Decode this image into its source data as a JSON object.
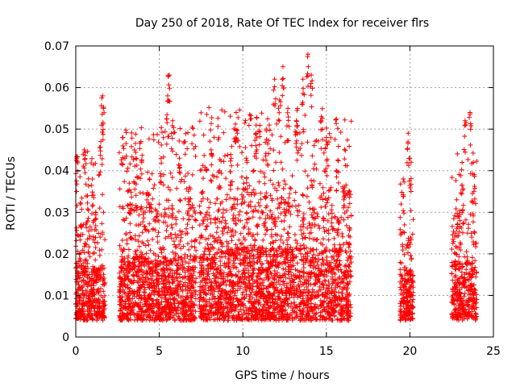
{
  "chart_data": {
    "type": "scatter",
    "title": "Day 250 of 2018, Rate Of TEC Index for receiver flrs",
    "xlabel": "GPS time / hours",
    "ylabel": "ROTI / TECUs",
    "xlim": [
      0,
      25
    ],
    "ylim": [
      0,
      0.07
    ],
    "x_ticks": [
      "0",
      "5",
      "10",
      "15",
      "20",
      "25"
    ],
    "y_ticks": [
      "0",
      "0.01",
      "0.02",
      "0.03",
      "0.04",
      "0.05",
      "0.06",
      "0.07"
    ],
    "grid": true,
    "marker": "+",
    "color": "#ff0000",
    "series": [
      {
        "segments": [
          {
            "x_range": [
              0.0,
              1.75
            ],
            "typical": [
              0.004,
              0.028
            ],
            "max": 0.058
          },
          {
            "x_range": [
              2.6,
              7.2
            ],
            "typical": [
              0.004,
              0.032
            ],
            "max": 0.063
          },
          {
            "x_range": [
              7.4,
              16.5
            ],
            "typical": [
              0.004,
              0.036
            ],
            "max": 0.068
          },
          {
            "x_range": [
              19.4,
              20.2
            ],
            "typical": [
              0.004,
              0.026
            ],
            "max": 0.049
          },
          {
            "x_range": [
              22.5,
              24.0
            ],
            "typical": [
              0.004,
              0.03
            ],
            "max": 0.054
          }
        ],
        "points": [
          [
            0.05,
            0.043
          ],
          [
            0.3,
            0.032
          ],
          [
            0.5,
            0.045
          ],
          [
            0.7,
            0.034
          ],
          [
            1.0,
            0.038
          ],
          [
            1.2,
            0.03
          ],
          [
            1.5,
            0.047
          ],
          [
            1.6,
            0.058
          ],
          [
            1.65,
            0.055
          ],
          [
            2.8,
            0.048
          ],
          [
            3.2,
            0.037
          ],
          [
            3.6,
            0.043
          ],
          [
            3.9,
            0.047
          ],
          [
            4.4,
            0.038
          ],
          [
            5.1,
            0.043
          ],
          [
            5.5,
            0.058
          ],
          [
            5.6,
            0.063
          ],
          [
            5.8,
            0.052
          ],
          [
            6.2,
            0.043
          ],
          [
            6.8,
            0.036
          ],
          [
            8.1,
            0.045
          ],
          [
            8.6,
            0.04
          ],
          [
            9.3,
            0.043
          ],
          [
            9.6,
            0.054
          ],
          [
            10.2,
            0.043
          ],
          [
            10.8,
            0.049
          ],
          [
            11.4,
            0.05
          ],
          [
            11.9,
            0.062
          ],
          [
            12.2,
            0.057
          ],
          [
            12.4,
            0.065
          ],
          [
            12.7,
            0.055
          ],
          [
            13.2,
            0.052
          ],
          [
            13.6,
            0.062
          ],
          [
            13.9,
            0.068
          ],
          [
            14.1,
            0.063
          ],
          [
            14.7,
            0.053
          ],
          [
            15.0,
            0.048
          ],
          [
            16.1,
            0.036
          ],
          [
            16.4,
            0.026
          ],
          [
            19.6,
            0.038
          ],
          [
            19.9,
            0.049
          ],
          [
            20.0,
            0.043
          ],
          [
            22.8,
            0.033
          ],
          [
            23.3,
            0.052
          ],
          [
            23.6,
            0.054
          ],
          [
            23.8,
            0.042
          ]
        ]
      }
    ]
  }
}
